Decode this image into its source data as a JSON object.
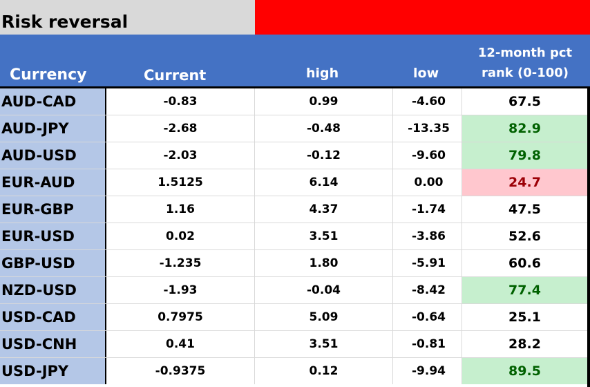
{
  "title": "Risk reversal",
  "header": {
    "currency": "Currency",
    "current": "Current",
    "high": "high",
    "low": "low",
    "rank_line1": "12-month pct",
    "rank_line2": "rank (0-100)"
  },
  "colors": {
    "title_bg": "#d9d9d9",
    "banner_red": "#ff0000",
    "header_blue": "#4472c4",
    "currency_col": "#b4c7e7",
    "rank_high_fill": "#c6efce",
    "rank_low_fill": "#ffc7ce"
  },
  "rows": [
    {
      "currency": "AUD-CAD",
      "current": "-0.83",
      "high": "0.99",
      "low": "-4.60",
      "rank": "67.5",
      "highlight": ""
    },
    {
      "currency": "AUD-JPY",
      "current": "-2.68",
      "high": "-0.48",
      "low": "-13.35",
      "rank": "82.9",
      "highlight": "green"
    },
    {
      "currency": "AUD-USD",
      "current": "-2.03",
      "high": "-0.12",
      "low": "-9.60",
      "rank": "79.8",
      "highlight": "green"
    },
    {
      "currency": "EUR-AUD",
      "current": "1.5125",
      "high": "6.14",
      "low": "0.00",
      "rank": "24.7",
      "highlight": "red"
    },
    {
      "currency": "EUR-GBP",
      "current": "1.16",
      "high": "4.37",
      "low": "-1.74",
      "rank": "47.5",
      "highlight": ""
    },
    {
      "currency": "EUR-USD",
      "current": "0.02",
      "high": "3.51",
      "low": "-3.86",
      "rank": "52.6",
      "highlight": ""
    },
    {
      "currency": "GBP-USD",
      "current": "-1.235",
      "high": "1.80",
      "low": "-5.91",
      "rank": "60.6",
      "highlight": ""
    },
    {
      "currency": "NZD-USD",
      "current": "-1.93",
      "high": "-0.04",
      "low": "-8.42",
      "rank": "77.4",
      "highlight": "green"
    },
    {
      "currency": "USD-CAD",
      "current": "0.7975",
      "high": "5.09",
      "low": "-0.64",
      "rank": "25.1",
      "highlight": ""
    },
    {
      "currency": "USD-CNH",
      "current": "0.41",
      "high": "3.51",
      "low": "-0.81",
      "rank": "28.2",
      "highlight": ""
    },
    {
      "currency": "USD-JPY",
      "current": "-0.9375",
      "high": "0.12",
      "low": "-9.94",
      "rank": "89.5",
      "highlight": "green"
    }
  ]
}
